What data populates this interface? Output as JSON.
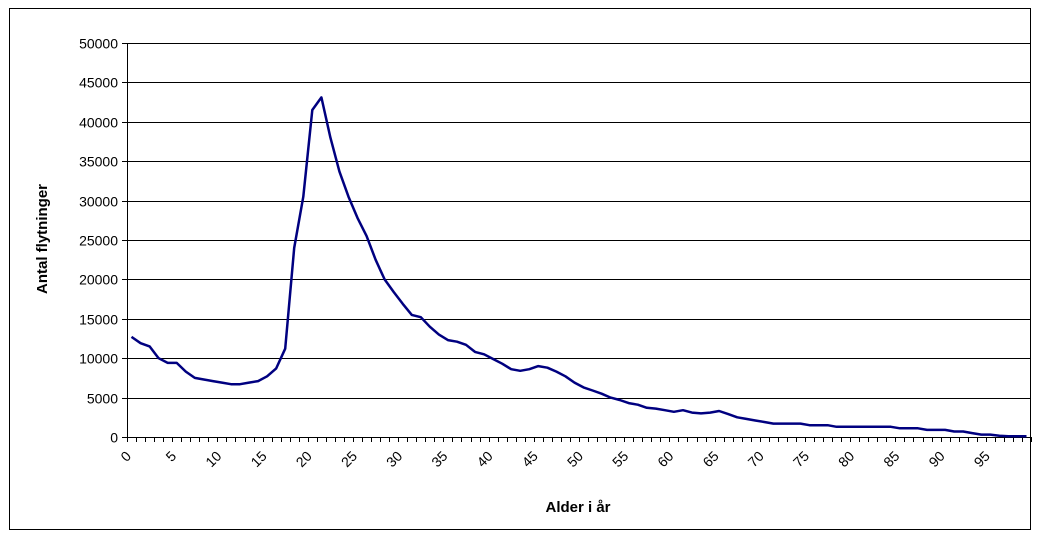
{
  "chart_data": {
    "type": "line",
    "title": "",
    "xlabel": "Alder i år",
    "ylabel": "Antal flytninger",
    "xlim": [
      0,
      100
    ],
    "ylim": [
      0,
      50000
    ],
    "y_ticks": [
      0,
      5000,
      10000,
      15000,
      20000,
      25000,
      30000,
      35000,
      40000,
      45000,
      50000
    ],
    "x_tick_labels": [
      0,
      5,
      10,
      15,
      20,
      25,
      30,
      35,
      40,
      45,
      50,
      55,
      60,
      65,
      70,
      75,
      80,
      85,
      90,
      95
    ],
    "grid": "horizontal",
    "legend": "none",
    "series": [
      {
        "color": "#000080",
        "x": [
          0,
          1,
          2,
          3,
          4,
          5,
          6,
          7,
          8,
          9,
          10,
          11,
          12,
          13,
          14,
          15,
          16,
          17,
          18,
          19,
          20,
          21,
          22,
          23,
          24,
          25,
          26,
          27,
          28,
          29,
          30,
          31,
          32,
          33,
          34,
          35,
          36,
          37,
          38,
          39,
          40,
          41,
          42,
          43,
          44,
          45,
          46,
          47,
          48,
          49,
          50,
          51,
          52,
          53,
          54,
          55,
          56,
          57,
          58,
          59,
          60,
          61,
          62,
          63,
          64,
          65,
          66,
          67,
          68,
          69,
          70,
          71,
          72,
          73,
          74,
          75,
          76,
          77,
          78,
          79,
          80,
          81,
          82,
          83,
          84,
          85,
          86,
          87,
          88,
          89,
          90,
          91,
          92,
          93,
          94,
          95,
          96,
          97,
          98,
          99
        ],
        "values": [
          12700,
          11900,
          11500,
          10000,
          9400,
          9400,
          8300,
          7500,
          7300,
          7100,
          6900,
          6700,
          6700,
          6900,
          7100,
          7700,
          8700,
          11200,
          24000,
          30500,
          41500,
          43100,
          38000,
          33700,
          30500,
          27800,
          25500,
          22500,
          20000,
          18400,
          16900,
          15500,
          15200,
          14000,
          13000,
          12300,
          12100,
          11700,
          10800,
          10500,
          9900,
          9300,
          8600,
          8400,
          8600,
          9000,
          8800,
          8300,
          7700,
          6900,
          6300,
          5900,
          5500,
          5000,
          4700,
          4300,
          4100,
          3700,
          3600,
          3400,
          3200,
          3400,
          3100,
          3000,
          3100,
          3300,
          2900,
          2500,
          2300,
          2100,
          1900,
          1700,
          1700,
          1700,
          1700,
          1500,
          1500,
          1500,
          1300,
          1300,
          1300,
          1300,
          1300,
          1300,
          1300,
          1100,
          1100,
          1100,
          900,
          900,
          900,
          700,
          700,
          500,
          300,
          300,
          150,
          100,
          100,
          100
        ]
      }
    ]
  }
}
